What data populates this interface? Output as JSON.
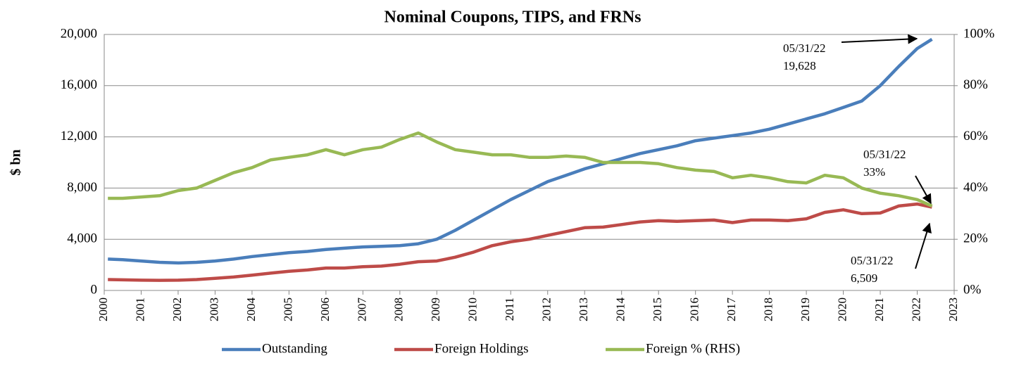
{
  "chart_data": {
    "type": "line",
    "title": "Nominal Coupons, TIPS, and FRNs",
    "y_label": "$ bn",
    "x": [
      2000.1,
      2000.5,
      2001,
      2001.5,
      2002,
      2002.5,
      2003,
      2003.5,
      2004,
      2004.5,
      2005,
      2005.5,
      2006,
      2006.5,
      2007,
      2007.5,
      2008,
      2008.5,
      2009,
      2009.5,
      2010,
      2010.5,
      2011,
      2011.5,
      2012,
      2012.5,
      2013,
      2013.5,
      2014,
      2014.5,
      2015,
      2015.5,
      2016,
      2016.5,
      2017,
      2017.5,
      2018,
      2018.5,
      2019,
      2019.5,
      2020,
      2020.5,
      2021,
      2021.5,
      2022,
      2022.4
    ],
    "xlim": [
      2000,
      2023
    ],
    "xticks": [
      2000,
      2001,
      2002,
      2003,
      2004,
      2005,
      2006,
      2007,
      2008,
      2009,
      2010,
      2011,
      2012,
      2013,
      2014,
      2015,
      2016,
      2017,
      2018,
      2019,
      2020,
      2021,
      2022,
      2023
    ],
    "ylim": [
      0,
      20000
    ],
    "yticks": [
      0,
      {
        "value": 4000,
        "label": "4,000"
      },
      {
        "value": 8000,
        "label": "8,000"
      },
      {
        "value": 12000,
        "label": "12,000"
      },
      {
        "value": 16000,
        "label": "16,000"
      },
      {
        "value": 20000,
        "label": "20,000"
      }
    ],
    "y2lim": [
      0,
      100
    ],
    "y2ticks": [
      {
        "value": 0,
        "label": "0%"
      },
      {
        "value": 20,
        "label": "20%"
      },
      {
        "value": 40,
        "label": "40%"
      },
      {
        "value": 60,
        "label": "60%"
      },
      {
        "value": 80,
        "label": "80%"
      },
      {
        "value": 100,
        "label": "100%"
      }
    ],
    "grid": true,
    "legend": "bottom",
    "series": [
      {
        "name": "Outstanding",
        "color": "#4a7ebb",
        "values": [
          2450,
          2400,
          2300,
          2200,
          2150,
          2200,
          2300,
          2450,
          2650,
          2800,
          2950,
          3050,
          3200,
          3300,
          3400,
          3450,
          3500,
          3650,
          4000,
          4700,
          5500,
          6300,
          7100,
          7800,
          8500,
          9000,
          9500,
          9900,
          10300,
          10700,
          11000,
          11300,
          11700,
          11900,
          12100,
          12300,
          12600,
          13000,
          13400,
          13800,
          14300,
          14800,
          16000,
          17500,
          18900,
          19628
        ]
      },
      {
        "name": "Foreign Holdings",
        "color": "#be4b48",
        "values": [
          850,
          830,
          800,
          790,
          800,
          850,
          950,
          1050,
          1200,
          1350,
          1500,
          1600,
          1750,
          1750,
          1850,
          1900,
          2050,
          2250,
          2300,
          2600,
          3000,
          3500,
          3800,
          4000,
          4300,
          4600,
          4900,
          4950,
          5150,
          5350,
          5450,
          5400,
          5450,
          5500,
          5300,
          5500,
          5500,
          5450,
          5600,
          6100,
          6300,
          6000,
          6050,
          6600,
          6750,
          6509
        ]
      },
      {
        "name": "Foreign % (RHS)",
        "color": "#98b954",
        "axis": "y2",
        "values": [
          36,
          36,
          36.5,
          37,
          39,
          40,
          43,
          46,
          48,
          51,
          52,
          53,
          55,
          53,
          55,
          56,
          59,
          61.5,
          58,
          55,
          54,
          53,
          53,
          52,
          52,
          52.5,
          52,
          50,
          50,
          50,
          49.5,
          48,
          47,
          46.5,
          44,
          45,
          44,
          42.5,
          42,
          45,
          44,
          40,
          38,
          37,
          35.5,
          33
        ]
      }
    ],
    "annotations": [
      {
        "date": "05/31/22",
        "label": "19,628"
      },
      {
        "date": "05/31/22",
        "label": "33%"
      },
      {
        "date": "05/31/22",
        "label": "6,509"
      }
    ]
  }
}
